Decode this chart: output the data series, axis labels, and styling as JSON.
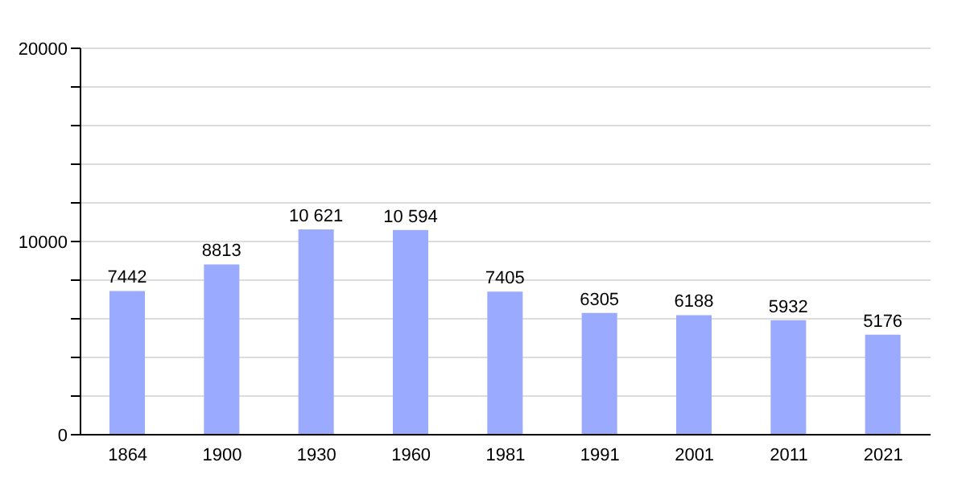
{
  "chart_data": {
    "type": "bar",
    "categories": [
      "1864",
      "1900",
      "1930",
      "1960",
      "1981",
      "1991",
      "2001",
      "2011",
      "2021"
    ],
    "values": [
      7442,
      8813,
      10621,
      10594,
      7405,
      6305,
      6188,
      5932,
      5176
    ],
    "value_labels": [
      "7442",
      "8813",
      "10 621",
      "10 594",
      "7405",
      "6305",
      "6188",
      "5932",
      "5176"
    ],
    "color": "#99aaff",
    "ylim": [
      0,
      20000
    ],
    "yticks": [
      0,
      {
        "value": 2000,
        "label": null
      },
      {
        "value": 4000,
        "label": null
      },
      {
        "value": 6000,
        "label": null
      },
      {
        "value": 8000,
        "label": null
      },
      10000,
      {
        "value": 12000,
        "label": null
      },
      {
        "value": 14000,
        "label": null
      },
      {
        "value": 16000,
        "label": null
      },
      {
        "value": 18000,
        "label": null
      },
      20000
    ],
    "grid": "y"
  }
}
